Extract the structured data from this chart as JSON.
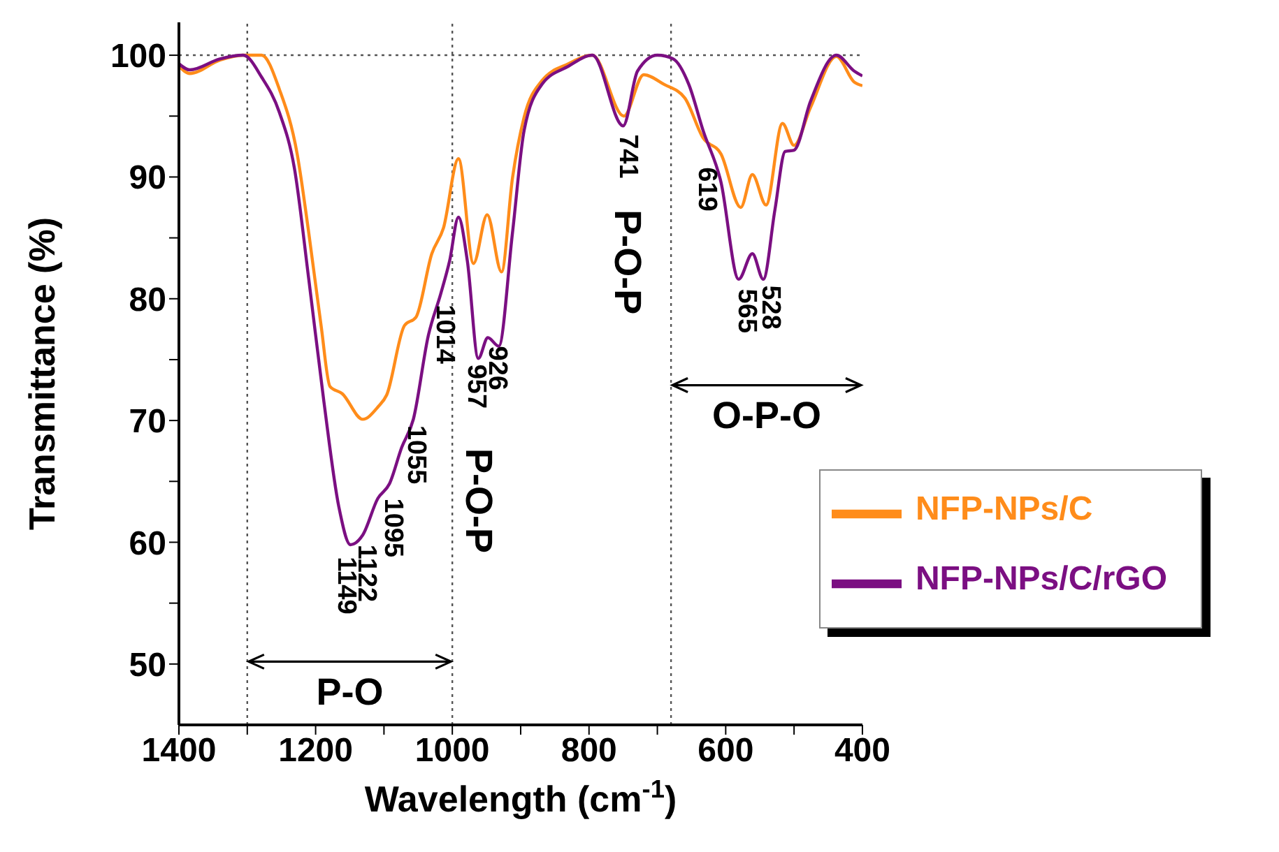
{
  "chart_data": {
    "type": "line",
    "xlabel": "Wavelength (cm$^{-1}$)",
    "ylabel": "Transmittance (%)",
    "xlim": [
      1400,
      400
    ],
    "ylim": [
      45,
      102.7
    ],
    "xticks": [
      1400,
      {
        "value": 1300,
        "label": null
      },
      1200,
      {
        "value": 1100,
        "label": null
      },
      1000,
      {
        "value": 900,
        "label": null
      },
      800,
      {
        "value": 700,
        "label": null
      },
      600,
      {
        "value": 500,
        "label": null
      },
      400
    ],
    "yticks": [
      50,
      {
        "value": 55,
        "label": null
      },
      60,
      {
        "value": 65,
        "label": null
      },
      70,
      {
        "value": 75,
        "label": null
      },
      80,
      {
        "value": 85,
        "label": null
      },
      90,
      {
        "value": 95,
        "label": null
      },
      100
    ],
    "grid": false,
    "legend": "bottom right",
    "line_style": "solid",
    "series": [
      {
        "name": "NFP-NPs/C",
        "color": "#ff8c1a",
        "x": [
          1400,
          1384,
          1340,
          1306,
          1279,
          1253,
          1227,
          1210,
          1192,
          1179,
          1161,
          1131,
          1109,
          1096,
          1070,
          1053,
          1030,
          1013,
          991,
          969,
          949,
          928,
          912,
          895,
          869,
          830,
          795,
          749,
          720,
          690,
          660,
          633,
          607,
          578,
          561,
          541,
          517,
          500,
          476,
          438,
          412,
          400
        ],
        "values": [
          99.1,
          98.5,
          99.6,
          100,
          100,
          97.2,
          91.9,
          85.4,
          77.8,
          72.8,
          72.2,
          70.1,
          71.1,
          72.1,
          77.8,
          78.5,
          83.7,
          85.8,
          91.5,
          82.9,
          86.9,
          82.2,
          89.9,
          94.9,
          97.9,
          99.3,
          100,
          95,
          98.4,
          97.6,
          96.5,
          93.2,
          91.9,
          87.5,
          90.2,
          87.7,
          94.4,
          92.6,
          95.7,
          99.9,
          97.8,
          97.5
        ]
      },
      {
        "name": "NFP-NPs/C/rGO",
        "color": "#7b0f82",
        "x": [
          1400,
          1384,
          1340,
          1306,
          1279,
          1253,
          1231,
          1210,
          1188,
          1166,
          1149,
          1131,
          1109,
          1092,
          1074,
          1057,
          1035,
          1017,
          1004,
          991,
          978,
          962,
          948,
          932,
          912,
          895,
          869,
          830,
          795,
          750,
          729,
          700,
          677,
          654,
          633,
          607,
          581,
          561,
          545,
          528,
          513,
          500,
          476,
          438,
          412,
          400
        ],
        "values": [
          99.3,
          98.8,
          99.7,
          100,
          98.2,
          95.3,
          90.7,
          81.6,
          71.6,
          62.9,
          59.8,
          60.6,
          63.6,
          64.8,
          67.8,
          70.1,
          77,
          80.4,
          83.1,
          86.7,
          83.1,
          75.1,
          76.8,
          76.1,
          85.4,
          93.8,
          97.6,
          99.1,
          100,
          94.2,
          98.7,
          100,
          99.7,
          97.6,
          93.8,
          89.6,
          81.6,
          83.7,
          81.6,
          87.3,
          92.1,
          92.2,
          96.2,
          100,
          98.7,
          98.3
        ]
      }
    ],
    "ref_lines": [
      {
        "axis": "x",
        "value": 1300,
        "line_style": "dotted",
        "color": "#555555"
      },
      {
        "axis": "x",
        "value": 1000,
        "line_style": "dotted",
        "color": "#555555"
      },
      {
        "axis": "x",
        "value": 680,
        "line_style": "dotted",
        "color": "#555555"
      },
      {
        "axis": "y",
        "value": 100,
        "line_style": "dotted",
        "color": "#555555"
      }
    ],
    "annotations": [
      {
        "text": "1149",
        "x": 1156,
        "y": 59.5
      },
      {
        "text": "1122",
        "x": 1126,
        "y": 60.5
      },
      {
        "text": "1095",
        "x": 1087,
        "y": 64.3
      },
      {
        "text": "1055",
        "x": 1053,
        "y": 70.3
      },
      {
        "text": "1014",
        "x": 1011,
        "y": 80.2
      },
      {
        "text": "957",
        "x": 965,
        "y": 75.3
      },
      {
        "text": "926",
        "x": 935,
        "y": 76.8
      },
      {
        "text": "741",
        "x": 744,
        "y": 94.2
      },
      {
        "text": "619",
        "x": 628,
        "y": 91.5
      },
      {
        "text": "565",
        "x": 570,
        "y": 81.5
      },
      {
        "text": "528",
        "x": 535,
        "y": 81.8
      },
      "P-O-P",
      "P-O-P",
      "P-O",
      "O-P-O"
    ]
  }
}
